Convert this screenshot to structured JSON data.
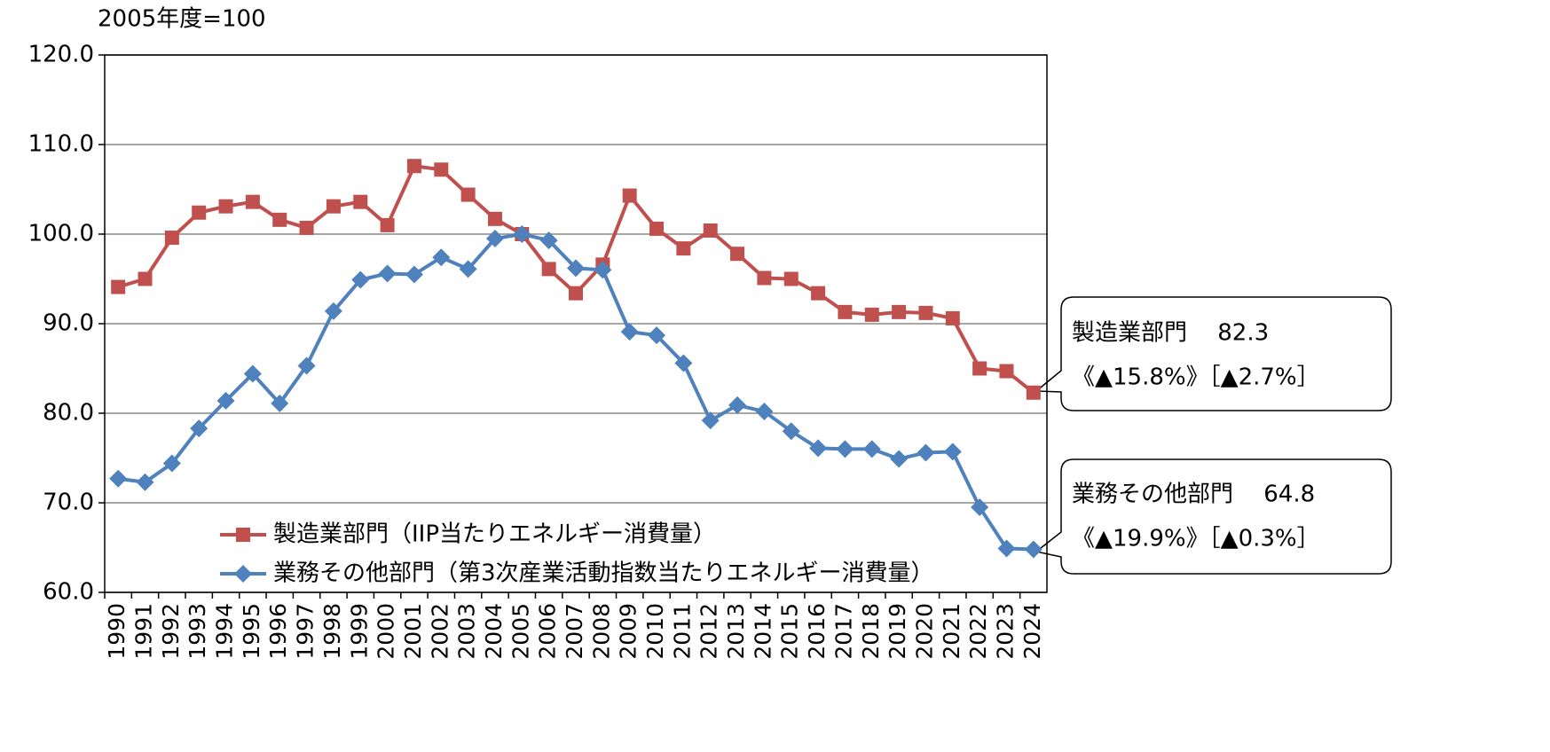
{
  "chart_data": {
    "type": "line",
    "y_label": "2005年度=100",
    "categories": [
      "1990",
      "1991",
      "1992",
      "1993",
      "1994",
      "1995",
      "1996",
      "1997",
      "1998",
      "1999",
      "2000",
      "2001",
      "2002",
      "2003",
      "2004",
      "2005",
      "2006",
      "2007",
      "2008",
      "2009",
      "2010",
      "2011",
      "2012",
      "2013",
      "2014",
      "2015",
      "2016",
      "2017",
      "2018",
      "2019",
      "2020",
      "2021",
      "2022",
      "2023",
      "2024"
    ],
    "series": [
      {
        "name": "製造業部門（IIP当たりエネルギー消費量）",
        "color": "#c0504d",
        "marker": "square",
        "values": [
          94.1,
          95.0,
          99.6,
          102.4,
          103.1,
          103.6,
          101.6,
          100.7,
          103.1,
          103.6,
          101.0,
          107.6,
          107.2,
          104.4,
          101.7,
          100.0,
          96.1,
          93.4,
          96.6,
          104.3,
          100.6,
          98.4,
          100.4,
          97.8,
          95.1,
          95.0,
          93.4,
          91.3,
          91.0,
          91.3,
          91.2,
          90.6,
          85.0,
          84.7,
          82.3
        ]
      },
      {
        "name": "業務その他部門（第3次産業活動指数当たりエネルギー消費量）",
        "color": "#4f81bd",
        "marker": "diamond",
        "values": [
          72.7,
          72.3,
          74.4,
          78.3,
          81.4,
          84.4,
          81.1,
          85.3,
          91.4,
          94.9,
          95.6,
          95.5,
          97.4,
          96.1,
          99.5,
          100.0,
          99.3,
          96.2,
          96.0,
          89.1,
          88.7,
          85.6,
          79.2,
          80.9,
          80.2,
          78.0,
          76.1,
          76.0,
          76.0,
          74.9,
          75.6,
          75.7,
          69.5,
          64.9,
          64.8
        ]
      }
    ],
    "ylim": [
      60,
      120
    ],
    "yticks": [
      {
        "value": 60,
        "label": "60.0"
      },
      {
        "value": 70,
        "label": "70.0"
      },
      {
        "value": 80,
        "label": "80.0"
      },
      {
        "value": 90,
        "label": "90.0"
      },
      {
        "value": 100,
        "label": "100.0"
      },
      {
        "value": 110,
        "label": "110.0"
      },
      {
        "value": 120,
        "label": "120.0"
      }
    ],
    "grid": true,
    "legend": "lower left",
    "annotations": [
      {
        "lines": [
          "製造業部門　 82.3",
          "《▲15.8%》［▲2.7%］"
        ]
      },
      {
        "lines": [
          "業務その他部門　 64.8",
          "《▲19.9%》［▲0.3%］"
        ]
      }
    ]
  }
}
